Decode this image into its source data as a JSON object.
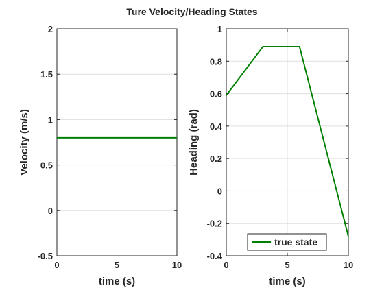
{
  "figure": {
    "title": "Ture Velocity/Heading States",
    "line_color": "#008000"
  },
  "chart_data": [
    {
      "type": "line",
      "title": "",
      "xlabel": "time (s)",
      "ylabel": "Velocity (m/s)",
      "xlim": [
        0,
        10
      ],
      "ylim": [
        -0.5,
        2
      ],
      "xticks": [
        0,
        5,
        10
      ],
      "yticks": [
        -0.5,
        0,
        0.5,
        1,
        1.5,
        2
      ],
      "xtick_labels": [
        "0",
        "5",
        "10"
      ],
      "ytick_labels": [
        "-0.5",
        "0",
        "0.5",
        "1",
        "1.5",
        "2"
      ],
      "grid": true,
      "series": [
        {
          "x": [
            0,
            10
          ],
          "y": [
            0.8,
            0.8
          ]
        }
      ]
    },
    {
      "type": "line",
      "title": "",
      "xlabel": "time (s)",
      "ylabel": "Heading (rad)",
      "xlim": [
        0,
        10
      ],
      "ylim": [
        -0.4,
        1
      ],
      "xticks": [
        0,
        5,
        10
      ],
      "yticks": [
        -0.4,
        -0.2,
        0,
        0.2,
        0.4,
        0.6,
        0.8,
        1
      ],
      "xtick_labels": [
        "0",
        "5",
        "10"
      ],
      "ytick_labels": [
        "-0.4",
        "-0.2",
        "0",
        "0.2",
        "0.4",
        "0.6",
        "0.8",
        "1"
      ],
      "grid": true,
      "legend": {
        "placement": "bottom-right"
      },
      "series": [
        {
          "name": "true state",
          "x": [
            0,
            3,
            6,
            10
          ],
          "y": [
            0.59,
            0.89,
            0.89,
            -0.28
          ]
        }
      ]
    }
  ]
}
